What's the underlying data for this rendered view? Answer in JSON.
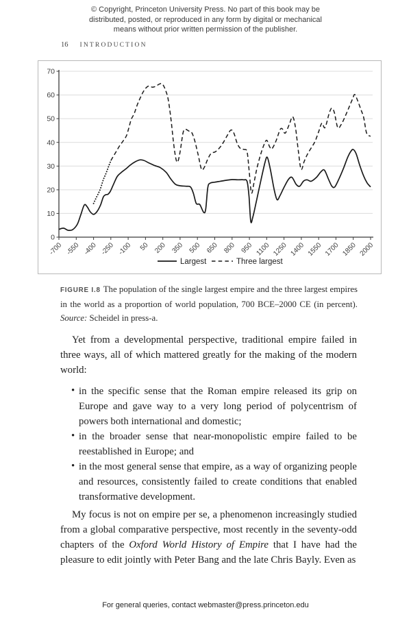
{
  "page": {
    "copyright_lines": [
      "© Copyright, Princeton University Press. No part of this book may be",
      "distributed, posted, or reproduced in any form by digital or mechanical",
      "means without prior written permission of the publisher."
    ],
    "page_number": "16",
    "running_head": "INTRODUCTION",
    "footer": "For general queries, contact webmaster@press.princeton.edu"
  },
  "figure": {
    "caption_label": "FIGURE I.8",
    "caption_text": "The population of the single largest empire and the three largest empires in the world as a proportion of world population, 700 BCE–2000 CE (in percent).",
    "source_label": "Source:",
    "source_text": "Scheidel in press-a."
  },
  "chart_data": {
    "type": "line",
    "title": "",
    "xlabel": "",
    "ylabel": "",
    "ylim": [
      0,
      70
    ],
    "xlim": [
      -700,
      2000
    ],
    "yticks": [
      0,
      10,
      20,
      30,
      40,
      50,
      60,
      70
    ],
    "xticks": [
      -700,
      -550,
      -400,
      -250,
      -100,
      50,
      200,
      350,
      500,
      650,
      800,
      950,
      1100,
      1250,
      1400,
      1550,
      1700,
      1850,
      2000
    ],
    "grid": true,
    "legend_position": "bottom-center",
    "legend": [
      "Largest",
      "Three largest"
    ],
    "colors": {
      "line": "#1a1a1a",
      "grid": "#dcdcdc",
      "axis": "#3a3a3a",
      "tick_text": "#3d3d3d"
    },
    "series": [
      {
        "name": "Largest",
        "style": "solid",
        "segments": [
          {
            "style": "solid",
            "points": [
              [
                -700,
                3.3
              ],
              [
                -660,
                3.8
              ],
              [
                -620,
                2.9
              ],
              [
                -580,
                3.2
              ],
              [
                -540,
                5.5
              ],
              [
                -510,
                9.5
              ],
              [
                -480,
                13.6
              ],
              [
                -455,
                12.8
              ],
              [
                -430,
                10.8
              ],
              [
                -400,
                9.6
              ],
              [
                -370,
                10.8
              ],
              [
                -340,
                13.5
              ],
              [
                -315,
                17
              ],
              [
                -295,
                17.9
              ],
              [
                -275,
                18.1
              ],
              [
                -255,
                19.3
              ],
              [
                -225,
                22.5
              ],
              [
                -195,
                25.6
              ],
              [
                -160,
                27.3
              ],
              [
                -120,
                28.8
              ],
              [
                -80,
                30.5
              ],
              [
                -40,
                31.8
              ],
              [
                0,
                32.6
              ],
              [
                35,
                32.4
              ],
              [
                80,
                31.3
              ],
              [
                130,
                30.2
              ],
              [
                180,
                29.3
              ],
              [
                230,
                27.3
              ],
              [
                270,
                24.5
              ],
              [
                310,
                22.3
              ],
              [
                350,
                21.7
              ],
              [
                400,
                21.5
              ],
              [
                440,
                21.2
              ],
              [
                465,
                18.5
              ],
              [
                490,
                14.2
              ],
              [
                520,
                13.8
              ],
              [
                555,
                10.4
              ],
              [
                572,
                12
              ],
              [
                590,
                21
              ],
              [
                610,
                22.8
              ],
              [
                650,
                23.2
              ],
              [
                700,
                23.6
              ],
              [
                750,
                24
              ],
              [
                800,
                24.3
              ],
              [
                850,
                24.2
              ],
              [
                900,
                24.2
              ],
              [
                930,
                23.5
              ],
              [
                947,
                17
              ],
              [
                962,
                6.6
              ],
              [
                980,
                8.5
              ],
              [
                1010,
                15
              ],
              [
                1050,
                24
              ],
              [
                1085,
                31.5
              ],
              [
                1105,
                33.7
              ],
              [
                1130,
                29
              ],
              [
                1165,
                20
              ],
              [
                1190,
                15.8
              ],
              [
                1215,
                17.5
              ],
              [
                1250,
                21
              ],
              [
                1290,
                24.5
              ],
              [
                1320,
                25.2
              ],
              [
                1355,
                22.3
              ],
              [
                1385,
                21.5
              ],
              [
                1420,
                23.7
              ],
              [
                1450,
                24.2
              ],
              [
                1485,
                23.6
              ],
              [
                1530,
                25.2
              ],
              [
                1570,
                27.6
              ],
              [
                1600,
                28.3
              ],
              [
                1635,
                24.5
              ],
              [
                1665,
                21.5
              ],
              [
                1690,
                21.2
              ],
              [
                1725,
                24.5
              ],
              [
                1765,
                29
              ],
              [
                1800,
                33.5
              ],
              [
                1830,
                36.3
              ],
              [
                1850,
                37
              ],
              [
                1875,
                35.2
              ],
              [
                1905,
                30.5
              ],
              [
                1940,
                25.8
              ],
              [
                1970,
                22.9
              ],
              [
                2000,
                21.2
              ]
            ]
          }
        ]
      },
      {
        "name": "Three largest",
        "style": "dashed",
        "segments": [
          {
            "style": "dotted",
            "points": [
              [
                -400,
                14.2
              ],
              [
                -385,
                15.8
              ],
              [
                -365,
                17.8
              ],
              [
                -345,
                19.8
              ],
              [
                -330,
                22
              ],
              [
                -315,
                24.3
              ],
              [
                -300,
                26
              ],
              [
                -285,
                27.8
              ],
              [
                -270,
                29.8
              ],
              [
                -258,
                31.3
              ],
              [
                -250,
                32.3
              ]
            ]
          },
          {
            "style": "dashed",
            "points": [
              [
                -250,
                32.3
              ],
              [
                -230,
                34
              ],
              [
                -205,
                36
              ],
              [
                -175,
                38.5
              ],
              [
                -145,
                40.5
              ],
              [
                -115,
                42.8
              ],
              [
                -95,
                46
              ],
              [
                -75,
                49.5
              ],
              [
                -60,
                51
              ],
              [
                -45,
                52.5
              ],
              [
                -20,
                56
              ],
              [
                5,
                58.8
              ],
              [
                30,
                61.3
              ],
              [
                55,
                63
              ],
              [
                80,
                63.8
              ],
              [
                110,
                63.3
              ],
              [
                140,
                63.7
              ],
              [
                170,
                64.6
              ],
              [
                195,
                64.7
              ],
              [
                220,
                62.5
              ],
              [
                245,
                58.5
              ],
              [
                270,
                50
              ],
              [
                295,
                39
              ],
              [
                315,
                32.8
              ],
              [
                330,
                31.9
              ],
              [
                350,
                36
              ],
              [
                375,
                44
              ],
              [
                395,
                45.5
              ],
              [
                425,
                44.8
              ],
              [
                450,
                44.2
              ],
              [
                475,
                41
              ],
              [
                505,
                35
              ],
              [
                535,
                28.7
              ],
              [
                560,
                29.5
              ],
              [
                590,
                33
              ],
              [
                620,
                35.4
              ],
              [
                655,
                36
              ],
              [
                690,
                37.6
              ],
              [
                725,
                40
              ],
              [
                760,
                43
              ],
              [
                790,
                45.2
              ],
              [
                815,
                44
              ],
              [
                845,
                39.5
              ],
              [
                875,
                37.3
              ],
              [
                905,
                37
              ],
              [
                930,
                36
              ],
              [
                948,
                28
              ],
              [
                968,
                18.7
              ],
              [
                990,
                23
              ],
              [
                1015,
                29
              ],
              [
                1045,
                34.5
              ],
              [
                1075,
                38.8
              ],
              [
                1100,
                40.9
              ],
              [
                1125,
                38.2
              ],
              [
                1145,
                37.3
              ],
              [
                1180,
                40.5
              ],
              [
                1215,
                45.3
              ],
              [
                1235,
                45.7
              ],
              [
                1260,
                43.9
              ],
              [
                1295,
                47.5
              ],
              [
                1325,
                50.8
              ],
              [
                1350,
                46
              ],
              [
                1375,
                36
              ],
              [
                1398,
                28.6
              ],
              [
                1425,
                32
              ],
              [
                1455,
                35.2
              ],
              [
                1490,
                38
              ],
              [
                1520,
                40.5
              ],
              [
                1550,
                44.5
              ],
              [
                1578,
                48.1
              ],
              [
                1605,
                46.2
              ],
              [
                1640,
                52
              ],
              [
                1662,
                54.4
              ],
              [
                1685,
                52.8
              ],
              [
                1715,
                46.3
              ],
              [
                1745,
                47.5
              ],
              [
                1780,
                51
              ],
              [
                1815,
                55
              ],
              [
                1845,
                58.5
              ],
              [
                1862,
                60.2
              ],
              [
                1885,
                58
              ],
              [
                1915,
                54
              ],
              [
                1940,
                50.5
              ],
              [
                1962,
                44.5
              ],
              [
                1980,
                43
              ],
              [
                2000,
                42.6
              ]
            ]
          }
        ]
      }
    ]
  },
  "body": {
    "bullet_glyph": "•",
    "para1": "Yet from a developmental perspective, traditional empire failed in three ways, all of which mattered greatly for the making of the modern world:",
    "bullets": [
      "in the specific sense that the Roman empire released its grip on Europe and gave way to a very long period of polycentrism of powers both international and domestic;",
      "in the broader sense that near-monopolistic empire failed to be reestablished in Europe; and",
      "in the most general sense that empire, as a way of organizing people and resources, consistently failed to create conditions that enabled transformative development."
    ],
    "para2_before": "My focus is not on empire per se, a phenomenon increasingly studied from a global comparative perspective, most recently in the seventy-odd chapters of the ",
    "para2_italic": "Oxford World History of Empire",
    "para2_after": " that I have had the pleasure to edit jointly with Peter Bang and the late Chris Bayly. Even as"
  }
}
